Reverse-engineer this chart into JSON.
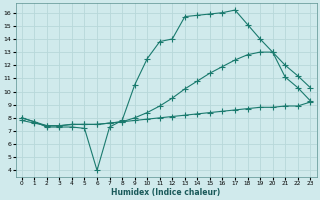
{
  "line1_x": [
    0,
    1,
    2,
    3,
    4,
    5,
    6,
    7,
    8,
    9,
    10,
    11,
    12,
    13,
    14,
    15,
    16,
    17,
    18,
    19,
    20,
    21,
    22,
    23
  ],
  "line1_y": [
    8.0,
    7.7,
    7.3,
    7.3,
    7.3,
    7.2,
    4.0,
    7.3,
    7.8,
    10.5,
    12.5,
    13.8,
    14.0,
    15.7,
    15.8,
    15.9,
    16.0,
    16.2,
    15.1,
    14.0,
    13.0,
    11.1,
    10.3,
    9.3
  ],
  "line2_x": [
    0,
    1,
    2,
    3,
    4,
    5,
    6,
    7,
    8,
    9,
    10,
    11,
    12,
    13,
    14,
    15,
    16,
    17,
    18,
    19,
    20,
    21,
    22,
    23
  ],
  "line2_y": [
    8.0,
    7.7,
    7.4,
    7.4,
    7.5,
    7.5,
    7.5,
    7.6,
    7.7,
    8.0,
    8.4,
    8.9,
    9.5,
    10.2,
    10.8,
    11.4,
    11.9,
    12.4,
    12.8,
    13.0,
    13.0,
    12.0,
    11.2,
    10.3
  ],
  "line3_x": [
    0,
    1,
    2,
    3,
    4,
    5,
    6,
    7,
    8,
    9,
    10,
    11,
    12,
    13,
    14,
    15,
    16,
    17,
    18,
    19,
    20,
    21,
    22,
    23
  ],
  "line3_y": [
    7.8,
    7.6,
    7.4,
    7.4,
    7.5,
    7.5,
    7.5,
    7.6,
    7.7,
    7.8,
    7.9,
    8.0,
    8.1,
    8.2,
    8.3,
    8.4,
    8.5,
    8.6,
    8.7,
    8.8,
    8.8,
    8.9,
    8.9,
    9.2
  ],
  "color": "#1a7a6e",
  "bg_color": "#d0eaec",
  "grid_color": "#b8d8da",
  "xlabel": "Humidex (Indice chaleur)",
  "xlim": [
    -0.5,
    23.5
  ],
  "ylim": [
    3.5,
    16.7
  ],
  "xticks": [
    0,
    1,
    2,
    3,
    4,
    5,
    6,
    7,
    8,
    9,
    10,
    11,
    12,
    13,
    14,
    15,
    16,
    17,
    18,
    19,
    20,
    21,
    22,
    23
  ],
  "yticks": [
    4,
    5,
    6,
    7,
    8,
    9,
    10,
    11,
    12,
    13,
    14,
    15,
    16
  ]
}
